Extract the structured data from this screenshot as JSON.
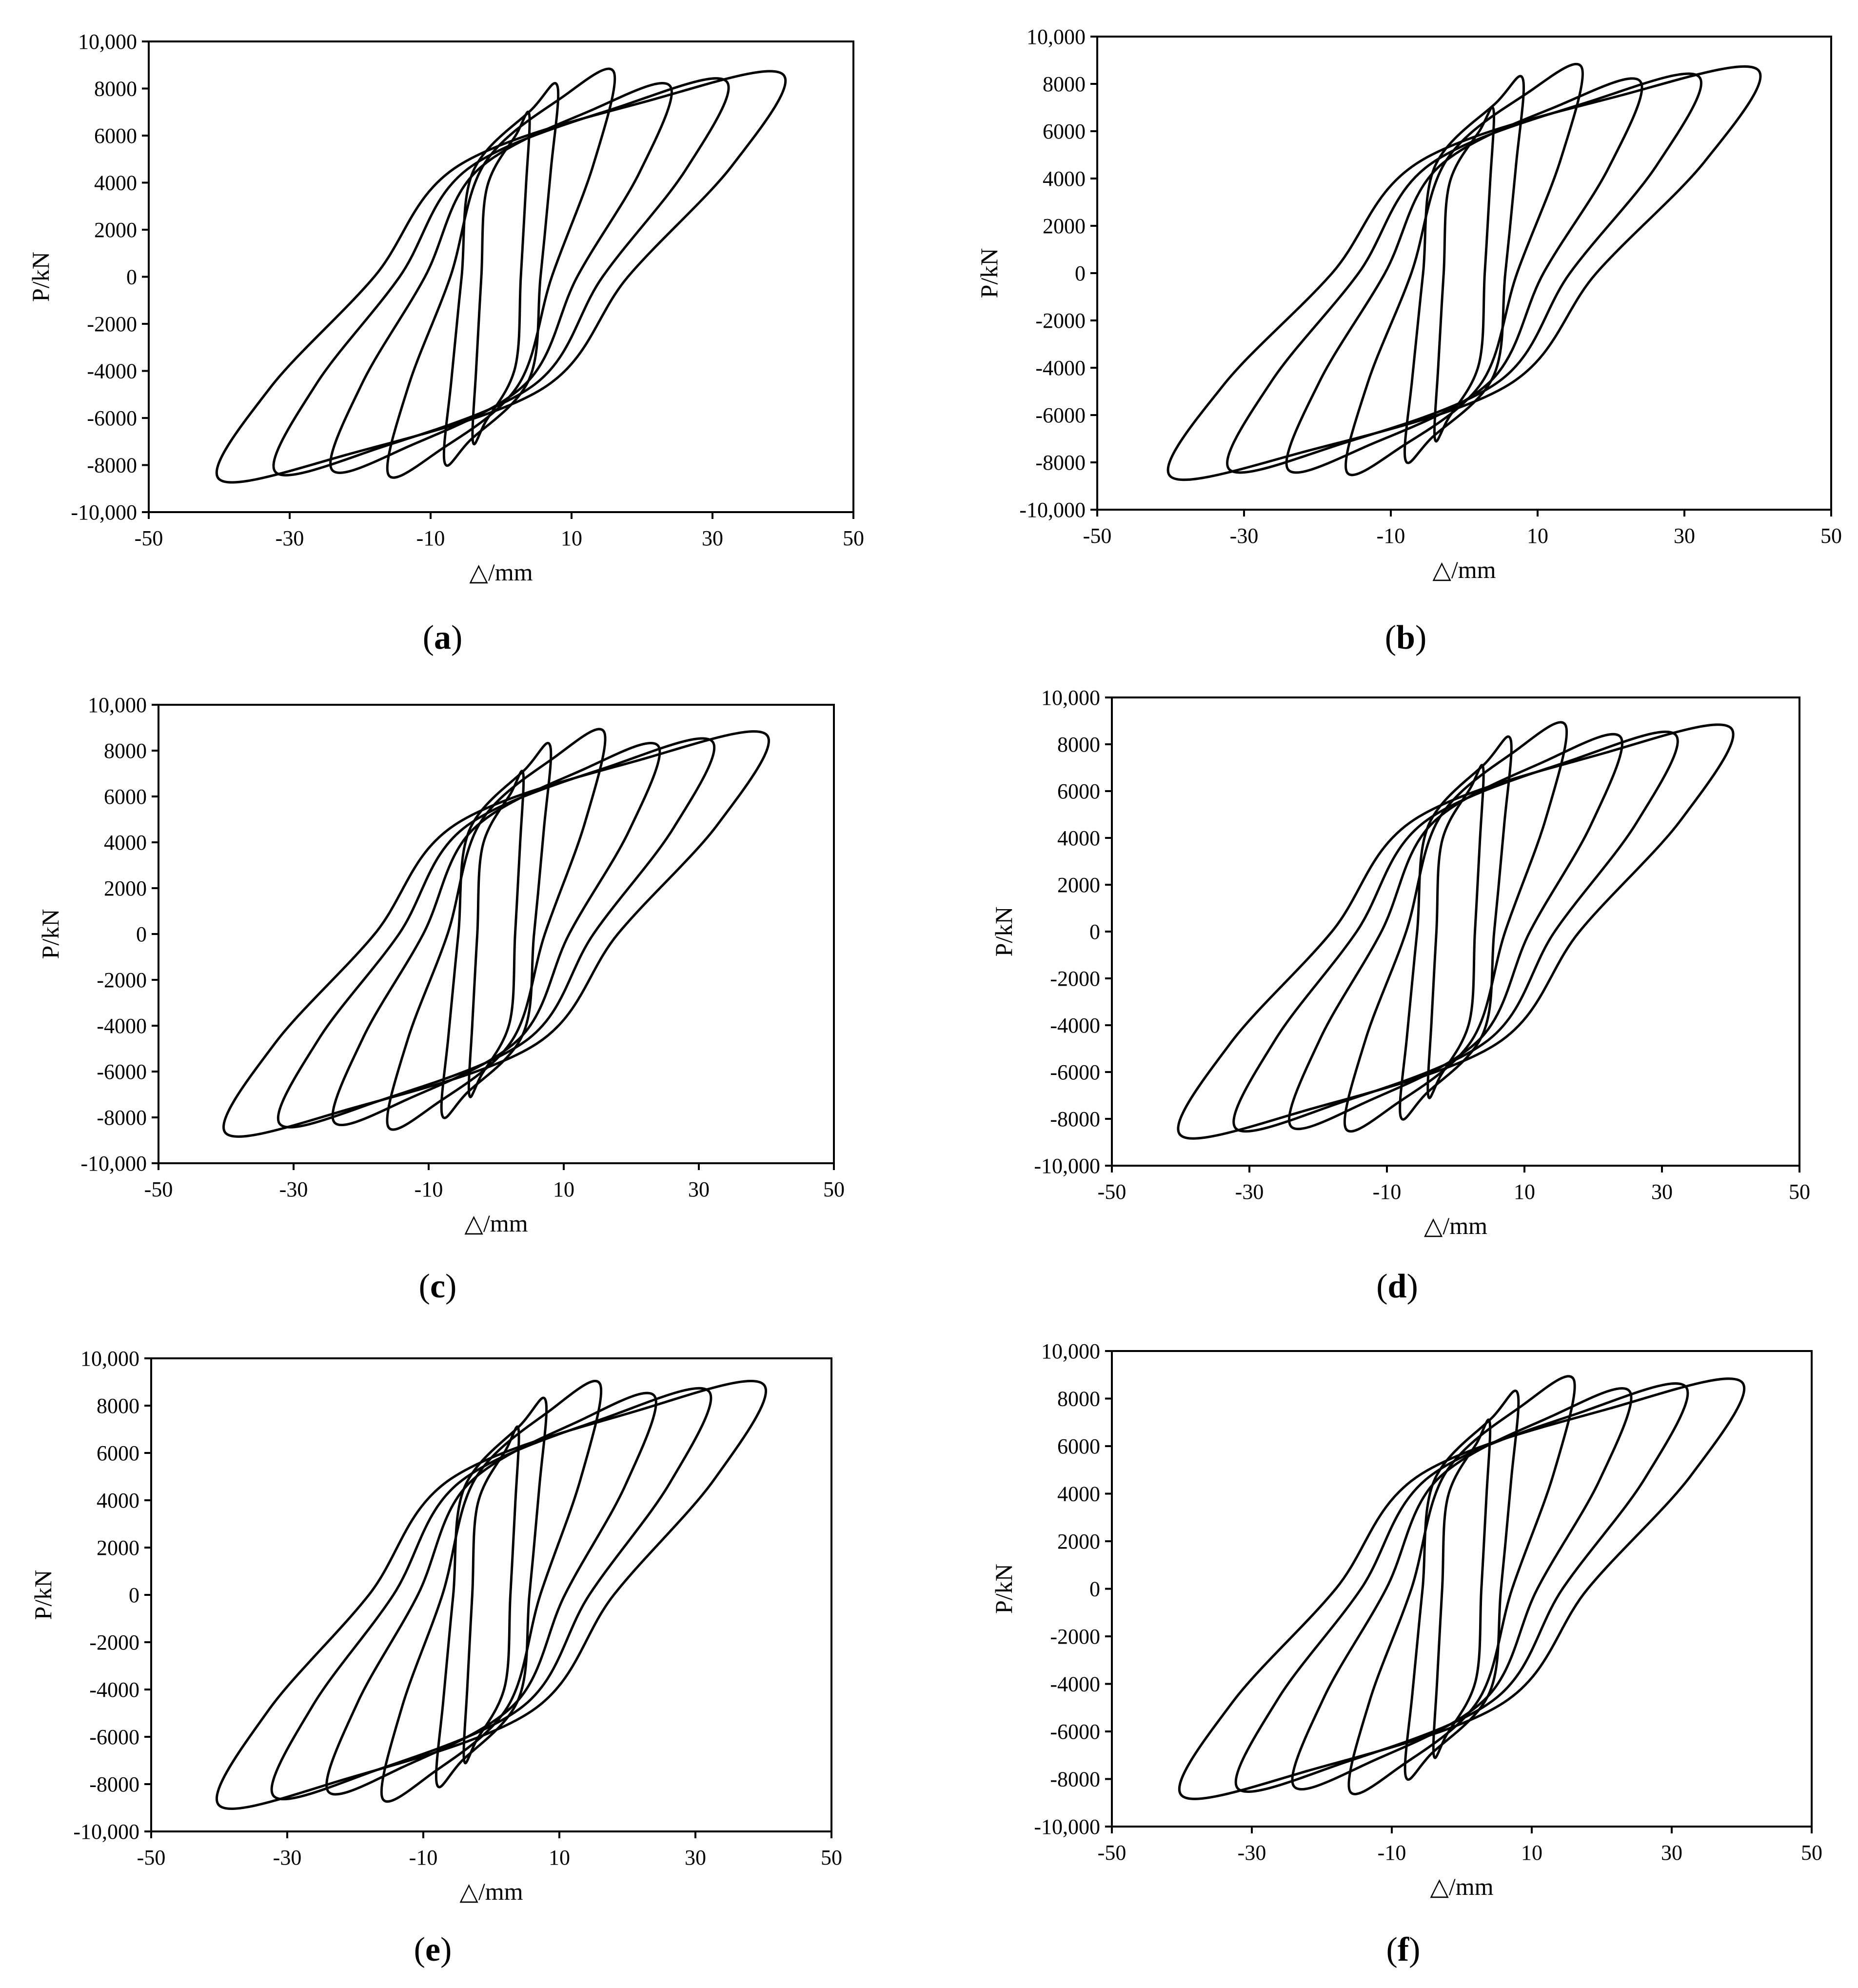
{
  "figure": {
    "panels": [
      {
        "label": "a"
      },
      {
        "label": "b"
      },
      {
        "label": "c"
      },
      {
        "label": "d"
      },
      {
        "label": "e"
      },
      {
        "label": "f"
      }
    ],
    "line_color": "#000000"
  },
  "chart_data": [
    {
      "id": "a",
      "type": "line",
      "xlabel": "△/mm",
      "ylabel": "P/kN",
      "xlim": [
        -50,
        50
      ],
      "ylim": [
        -10000,
        10000
      ],
      "x_ticks": [
        "-50",
        "-30",
        "-10",
        "10",
        "30",
        "50"
      ],
      "x_tick_values": [
        -50,
        -30,
        -10,
        10,
        30,
        50
      ],
      "y_ticks": [
        "10,000",
        "8000",
        "6000",
        "4000",
        "2000",
        "0",
        "-2000",
        "-4000",
        "-6000",
        "-8000",
        "-10,000"
      ],
      "y_tick_values": [
        10000,
        8000,
        6000,
        4000,
        2000,
        0,
        -2000,
        -4000,
        -6000,
        -8000,
        -10000
      ],
      "grid": false,
      "cycles": [
        {
          "amplitude": 4,
          "peak_pos": 6900,
          "peak_neg": -7000
        },
        {
          "amplitude": 8,
          "peak_pos": 8100,
          "peak_neg": -7900
        },
        {
          "amplitude": 16,
          "peak_pos": 8700,
          "peak_neg": -8400
        },
        {
          "amplitude": 24,
          "peak_pos": 8100,
          "peak_neg": -8200
        },
        {
          "amplitude": 32,
          "peak_pos": 8300,
          "peak_neg": -8300
        },
        {
          "amplitude": 40,
          "peak_pos": 8600,
          "peak_neg": -8600
        }
      ]
    },
    {
      "id": "b",
      "type": "line",
      "xlabel": "△/mm",
      "ylabel": "P/kN",
      "xlim": [
        -50,
        50
      ],
      "ylim": [
        -10000,
        10000
      ],
      "x_ticks": [
        "-50",
        "-30",
        "-10",
        "10",
        "30",
        "50"
      ],
      "x_tick_values": [
        -50,
        -30,
        -10,
        10,
        30,
        50
      ],
      "y_ticks": [
        "10,000",
        "8000",
        "6000",
        "4000",
        "2000",
        "0",
        "-2000",
        "-4000",
        "-6000",
        "-8000",
        "-10,000"
      ],
      "y_tick_values": [
        10000,
        8000,
        6000,
        4000,
        2000,
        0,
        -2000,
        -4000,
        -6000,
        -8000,
        -10000
      ],
      "grid": false,
      "cycles": [
        {
          "amplitude": 4,
          "peak_pos": 6900,
          "peak_neg": -7000
        },
        {
          "amplitude": 8,
          "peak_pos": 8200,
          "peak_neg": -7900
        },
        {
          "amplitude": 16,
          "peak_pos": 8700,
          "peak_neg": -8400
        },
        {
          "amplitude": 24,
          "peak_pos": 8100,
          "peak_neg": -8300
        },
        {
          "amplitude": 32,
          "peak_pos": 8300,
          "peak_neg": -8300
        },
        {
          "amplitude": 40,
          "peak_pos": 8600,
          "peak_neg": -8600
        }
      ]
    },
    {
      "id": "c",
      "type": "line",
      "xlabel": "△/mm",
      "ylabel": "P/kN",
      "xlim": [
        -50,
        50
      ],
      "ylim": [
        -10000,
        10000
      ],
      "x_ticks": [
        "-50",
        "-30",
        "-10",
        "10",
        "30",
        "50"
      ],
      "x_tick_values": [
        -50,
        -30,
        -10,
        10,
        30,
        50
      ],
      "y_ticks": [
        "10,000",
        "8000",
        "6000",
        "4000",
        "2000",
        "0",
        "-2000",
        "-4000",
        "-6000",
        "-8000",
        "-10,000"
      ],
      "y_tick_values": [
        10000,
        8000,
        6000,
        4000,
        2000,
        0,
        -2000,
        -4000,
        -6000,
        -8000,
        -10000
      ],
      "grid": false,
      "cycles": [
        {
          "amplitude": 4,
          "peak_pos": 7000,
          "peak_neg": -7000
        },
        {
          "amplitude": 8,
          "peak_pos": 8200,
          "peak_neg": -7900
        },
        {
          "amplitude": 16,
          "peak_pos": 8800,
          "peak_neg": -8400
        },
        {
          "amplitude": 24,
          "peak_pos": 8200,
          "peak_neg": -8200
        },
        {
          "amplitude": 32,
          "peak_pos": 8400,
          "peak_neg": -8300
        },
        {
          "amplitude": 40,
          "peak_pos": 8700,
          "peak_neg": -8700
        }
      ]
    },
    {
      "id": "d",
      "type": "line",
      "xlabel": "△/mm",
      "ylabel": "P/kN",
      "xlim": [
        -50,
        50
      ],
      "ylim": [
        -10000,
        10000
      ],
      "x_ticks": [
        "-50",
        "-30",
        "-10",
        "10",
        "30",
        "50"
      ],
      "x_tick_values": [
        -50,
        -30,
        -10,
        10,
        30,
        50
      ],
      "y_ticks": [
        "10,000",
        "8000",
        "6000",
        "4000",
        "2000",
        "0",
        "-2000",
        "-4000",
        "-6000",
        "-8000",
        "-10,000"
      ],
      "y_tick_values": [
        10000,
        8000,
        6000,
        4000,
        2000,
        0,
        -2000,
        -4000,
        -6000,
        -8000,
        -10000
      ],
      "grid": false,
      "cycles": [
        {
          "amplitude": 4,
          "peak_pos": 7000,
          "peak_neg": -7000
        },
        {
          "amplitude": 8,
          "peak_pos": 8200,
          "peak_neg": -7900
        },
        {
          "amplitude": 16,
          "peak_pos": 8800,
          "peak_neg": -8400
        },
        {
          "amplitude": 24,
          "peak_pos": 8300,
          "peak_neg": -8300
        },
        {
          "amplitude": 32,
          "peak_pos": 8400,
          "peak_neg": -8400
        },
        {
          "amplitude": 40,
          "peak_pos": 8700,
          "peak_neg": -8700
        }
      ]
    },
    {
      "id": "e",
      "type": "line",
      "xlabel": "△/mm",
      "ylabel": "P/kN",
      "xlim": [
        -50,
        50
      ],
      "ylim": [
        -10000,
        10000
      ],
      "x_ticks": [
        "-50",
        "-30",
        "-10",
        "10",
        "30",
        "50"
      ],
      "x_tick_values": [
        -50,
        -30,
        -10,
        10,
        30,
        50
      ],
      "y_ticks": [
        "10,000",
        "8000",
        "6000",
        "4000",
        "2000",
        "0",
        "-2000",
        "-4000",
        "-6000",
        "-8000",
        "-10,000"
      ],
      "y_tick_values": [
        10000,
        8000,
        6000,
        4000,
        2000,
        0,
        -2000,
        -4000,
        -6000,
        -8000,
        -10000
      ],
      "grid": false,
      "cycles": [
        {
          "amplitude": 4,
          "peak_pos": 7000,
          "peak_neg": -7000
        },
        {
          "amplitude": 8,
          "peak_pos": 8200,
          "peak_neg": -8000
        },
        {
          "amplitude": 16,
          "peak_pos": 8900,
          "peak_neg": -8600
        },
        {
          "amplitude": 24,
          "peak_pos": 8400,
          "peak_neg": -8300
        },
        {
          "amplitude": 32,
          "peak_pos": 8600,
          "peak_neg": -8500
        },
        {
          "amplitude": 40,
          "peak_pos": 8900,
          "peak_neg": -8900
        }
      ]
    },
    {
      "id": "f",
      "type": "line",
      "xlabel": "△/mm",
      "ylabel": "P/kN",
      "xlim": [
        -50,
        50
      ],
      "ylim": [
        -10000,
        10000
      ],
      "x_ticks": [
        "-50",
        "-30",
        "-10",
        "10",
        "30",
        "50"
      ],
      "x_tick_values": [
        -50,
        -30,
        -10,
        10,
        30,
        50
      ],
      "y_ticks": [
        "10,000",
        "8000",
        "6000",
        "4000",
        "2000",
        "0",
        "-2000",
        "-4000",
        "-6000",
        "-8000",
        "-10,000"
      ],
      "y_tick_values": [
        10000,
        8000,
        6000,
        4000,
        2000,
        0,
        -2000,
        -4000,
        -6000,
        -8000,
        -10000
      ],
      "grid": false,
      "cycles": [
        {
          "amplitude": 4,
          "peak_pos": 7000,
          "peak_neg": -7000
        },
        {
          "amplitude": 8,
          "peak_pos": 8200,
          "peak_neg": -7900
        },
        {
          "amplitude": 16,
          "peak_pos": 8800,
          "peak_neg": -8500
        },
        {
          "amplitude": 24,
          "peak_pos": 8300,
          "peak_neg": -8300
        },
        {
          "amplitude": 32,
          "peak_pos": 8500,
          "peak_neg": -8400
        },
        {
          "amplitude": 40,
          "peak_pos": 8700,
          "peak_neg": -8700
        }
      ]
    }
  ]
}
